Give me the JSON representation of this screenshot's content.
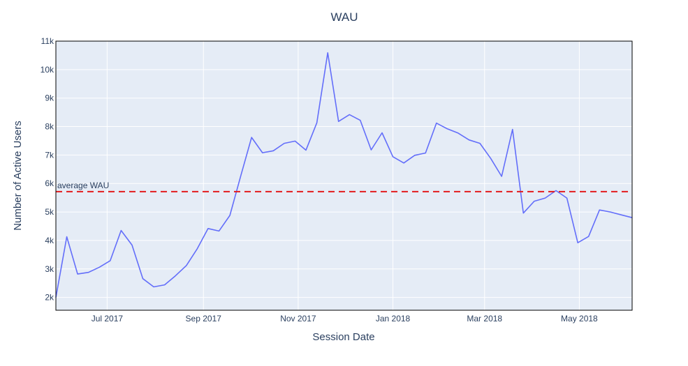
{
  "chart_data": {
    "type": "line",
    "title": "WAU",
    "xlabel": "Session Date",
    "ylabel": "Number of Active Users",
    "x_ticks": [
      "Jul 2017",
      "Sep 2017",
      "Nov 2017",
      "Jan 2018",
      "Mar 2018",
      "May 2018"
    ],
    "y_ticks": [
      "2k",
      "3k",
      "4k",
      "5k",
      "6k",
      "7k",
      "8k",
      "9k",
      "10k",
      "11k"
    ],
    "y_tick_values": [
      2000,
      3000,
      4000,
      5000,
      6000,
      7000,
      8000,
      9000,
      10000,
      11000
    ],
    "xlim": [
      "2017-05-29",
      "2018-06-04"
    ],
    "ylim": [
      1550,
      11000
    ],
    "grid": true,
    "background": "#e5ecf6",
    "line_color": "#636efa",
    "series": [
      {
        "x": [
          "2017-05-29",
          "2017-06-05",
          "2017-06-12",
          "2017-06-19",
          "2017-06-26",
          "2017-07-03",
          "2017-07-10",
          "2017-07-17",
          "2017-07-24",
          "2017-07-31",
          "2017-08-07",
          "2017-08-14",
          "2017-08-21",
          "2017-08-28",
          "2017-09-04",
          "2017-09-11",
          "2017-09-18",
          "2017-09-25",
          "2017-10-02",
          "2017-10-09",
          "2017-10-16",
          "2017-10-23",
          "2017-10-30",
          "2017-11-06",
          "2017-11-13",
          "2017-11-20",
          "2017-11-27",
          "2017-12-04",
          "2017-12-11",
          "2017-12-18",
          "2017-12-25",
          "2018-01-01",
          "2018-01-08",
          "2018-01-15",
          "2018-01-22",
          "2018-01-29",
          "2018-02-05",
          "2018-02-12",
          "2018-02-19",
          "2018-02-26",
          "2018-03-05",
          "2018-03-12",
          "2018-03-19",
          "2018-03-26",
          "2018-04-02",
          "2018-04-09",
          "2018-04-16",
          "2018-04-23",
          "2018-04-30",
          "2018-05-07",
          "2018-05-14",
          "2018-05-21",
          "2018-05-28",
          "2018-06-04"
        ],
        "values": [
          2000,
          4130,
          2820,
          2880,
          3060,
          3290,
          4350,
          3840,
          2660,
          2370,
          2440,
          2760,
          3120,
          3710,
          4420,
          4330,
          4880,
          6260,
          7620,
          7080,
          7150,
          7410,
          7490,
          7170,
          8130,
          10590,
          8180,
          8420,
          8220,
          7180,
          7780,
          6940,
          6720,
          6990,
          7070,
          8120,
          7920,
          7770,
          7530,
          7410,
          6880,
          6250,
          7900,
          4960,
          5380,
          5490,
          5750,
          5490,
          3920,
          4140,
          5070,
          5000,
          4900,
          4800
        ]
      }
    ],
    "reference_line": {
      "label": "average WAU",
      "value": 5716,
      "color": "#e31a1c",
      "style": "dashed"
    }
  }
}
